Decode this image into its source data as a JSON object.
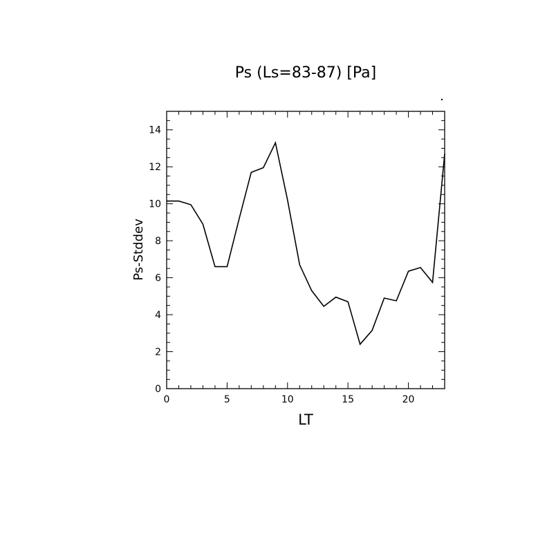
{
  "chart_data": {
    "type": "line",
    "title": "Ps (Ls=83-87) [Pa]",
    "xlabel": "LT",
    "ylabel": "Ps-Stddev",
    "xlim": [
      0,
      23
    ],
    "ylim": [
      0,
      15
    ],
    "x_ticks": [
      0,
      5,
      10,
      15,
      20
    ],
    "y_ticks": [
      0,
      2,
      4,
      6,
      8,
      10,
      12,
      14
    ],
    "grid": false,
    "series": [
      {
        "x": [
          0,
          1,
          2,
          3,
          4,
          5,
          6,
          7,
          8,
          9,
          10,
          11,
          12,
          13,
          14,
          15,
          16,
          17,
          18,
          19,
          20,
          21,
          22,
          23
        ],
        "values": [
          10.15,
          10.15,
          9.95,
          8.9,
          6.6,
          6.6,
          9.2,
          11.7,
          11.95,
          13.3,
          10.2,
          6.7,
          5.3,
          4.45,
          4.95,
          4.7,
          2.4,
          3.15,
          4.9,
          4.75,
          6.35,
          6.55,
          5.75,
          12.7
        ]
      }
    ],
    "colors": {
      "line": "#000000",
      "axis": "#000000",
      "background": "#ffffff"
    }
  }
}
